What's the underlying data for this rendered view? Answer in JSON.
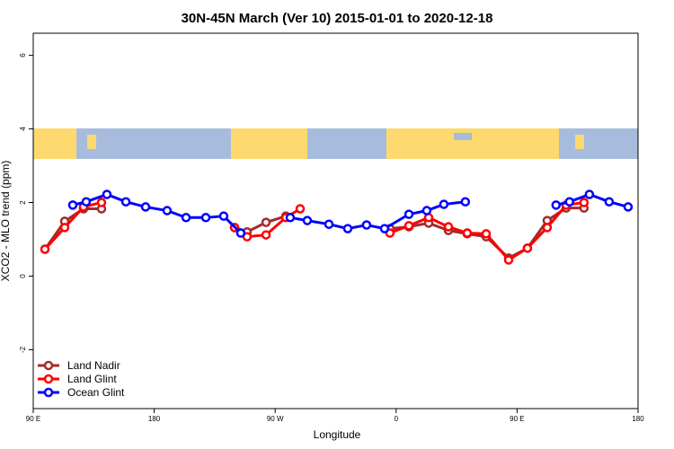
{
  "chart_data": {
    "type": "line",
    "title": "30N-45N March (Ver 10)   2015-01-01 to 2020-12-18",
    "x_label": "Longitude",
    "y_label": "XCO2 - MLO trend (ppm)",
    "xlim": [
      90,
      540
    ],
    "xticks": [
      {
        "value": 90,
        "label": "90 E"
      },
      {
        "value": 180,
        "label": "180"
      },
      {
        "value": 270,
        "label": "90 W"
      },
      {
        "value": 360,
        "label": "0"
      },
      {
        "value": 450,
        "label": "90 E"
      },
      {
        "value": 540,
        "label": "180"
      }
    ],
    "ylim": [
      -3.6,
      6.6
    ],
    "yticks": [
      -2,
      0,
      2,
      4,
      6
    ],
    "legend": "bottom-left",
    "series": [
      {
        "name": "Land Nadir",
        "color": "#a52a2a",
        "x": [
          98.7,
          113.4,
          127.4,
          140.8,
          null,
          239.8,
          249.1,
          263.2,
          277.9,
          null,
          355.4,
          369.5,
          384.2,
          398.9,
          412.9,
          427.0,
          443.7,
          457.7,
          472.4,
          486.5,
          499.8
        ],
        "values": [
          0.73,
          1.49,
          1.83,
          1.83,
          null,
          1.32,
          1.2,
          1.46,
          1.63,
          null,
          1.29,
          1.34,
          1.44,
          1.24,
          1.15,
          1.07,
          0.49,
          0.76,
          1.51,
          1.85,
          1.85
        ]
      },
      {
        "name": "Land Glint",
        "color": "#ff0000",
        "x": [
          98.7,
          113.4,
          127.4,
          140.8,
          null,
          239.8,
          249.1,
          263.2,
          277.9,
          288.6,
          null,
          355.4,
          369.5,
          384.2,
          398.9,
          412.9,
          427.0,
          443.7,
          457.7,
          472.4,
          486.5,
          499.8
        ],
        "values": [
          0.73,
          1.32,
          1.88,
          2.0,
          null,
          1.32,
          1.07,
          1.12,
          1.59,
          1.83,
          null,
          1.17,
          1.37,
          1.59,
          1.34,
          1.17,
          1.15,
          0.44,
          0.76,
          1.32,
          1.93,
          2.0
        ]
      },
      {
        "name": "Ocean Glint",
        "color": "#0000ff",
        "x": [
          119.4,
          129.4,
          144.8,
          158.9,
          173.6,
          189.6,
          203.7,
          218.4,
          231.7,
          244.4,
          null,
          281.2,
          293.9,
          310.0,
          324.0,
          338.0,
          351.4,
          369.5,
          382.8,
          395.5,
          411.5,
          null,
          479.0,
          489.0,
          503.8,
          518.5,
          532.6
        ],
        "values": [
          1.93,
          2.02,
          2.22,
          2.02,
          1.88,
          1.78,
          1.59,
          1.59,
          1.63,
          1.17,
          null,
          1.59,
          1.51,
          1.41,
          1.29,
          1.39,
          1.29,
          1.68,
          1.78,
          1.95,
          2.02,
          null,
          1.93,
          2.02,
          2.22,
          2.02,
          1.88
        ]
      }
    ]
  }
}
